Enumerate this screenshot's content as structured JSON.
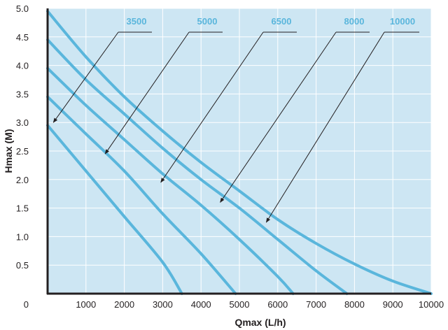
{
  "chart_data": {
    "type": "line",
    "title": "",
    "xlabel": "Qmax (L/h)",
    "ylabel": "Hmax (M)",
    "xlim": [
      0,
      10000
    ],
    "ylim": [
      0,
      5.0
    ],
    "x_ticks": [
      1000,
      2000,
      3000,
      4000,
      5000,
      6000,
      7000,
      8000,
      9000,
      10000
    ],
    "x_tick_labels": [
      "1000",
      "2000",
      "3000",
      "4000",
      "5000",
      "6000",
      "7000",
      "8000",
      "9000",
      "10000"
    ],
    "y_ticks": [
      0.5,
      1.0,
      1.5,
      2.0,
      2.5,
      3.0,
      3.5,
      4.0,
      4.5,
      5.0
    ],
    "y_tick_labels": [
      "0.5",
      "1.0",
      "1.5",
      "2.0",
      "2.5",
      "3.0",
      "3.5",
      "4.0",
      "4.5",
      "5.0"
    ],
    "origin_label": "0",
    "grid": true,
    "series": [
      {
        "name": "3500",
        "x": [
          0,
          1000,
          2000,
          3000,
          3500
        ],
        "y": [
          2.95,
          2.15,
          1.35,
          0.55,
          0.0
        ],
        "annotation_point": [
          150,
          3.0
        ]
      },
      {
        "name": "5000",
        "x": [
          0,
          1000,
          2000,
          3000,
          4000,
          4900
        ],
        "y": [
          3.45,
          2.8,
          2.15,
          1.4,
          0.7,
          0.0
        ],
        "annotation_point": [
          1500,
          2.45
        ]
      },
      {
        "name": "6500",
        "x": [
          0,
          1000,
          2000,
          3000,
          4000,
          5000,
          6000,
          6400
        ],
        "y": [
          3.95,
          3.3,
          2.7,
          2.1,
          1.55,
          0.95,
          0.3,
          0.0
        ],
        "annotation_point": [
          2950,
          1.95
        ]
      },
      {
        "name": "8000",
        "x": [
          0,
          1000,
          2000,
          3000,
          4000,
          5000,
          6000,
          7000,
          7800
        ],
        "y": [
          4.45,
          3.75,
          3.15,
          2.55,
          2.0,
          1.5,
          0.95,
          0.4,
          0.0
        ],
        "annotation_point": [
          4500,
          1.6
        ]
      },
      {
        "name": "10000",
        "x": [
          0,
          1000,
          2000,
          3000,
          4000,
          5000,
          6000,
          7000,
          8000,
          9000,
          10000
        ],
        "y": [
          4.95,
          4.15,
          3.45,
          2.85,
          2.3,
          1.8,
          1.3,
          0.88,
          0.52,
          0.22,
          0.0
        ],
        "annotation_point": [
          5700,
          1.25
        ]
      }
    ]
  },
  "colors": {
    "plot_bg": "#cde6f3",
    "grid": "#ffffff",
    "series_line": "#5ab6dc",
    "series_label": "#5ab6dc",
    "axis": "#231f20",
    "annotation": "#231f20"
  }
}
